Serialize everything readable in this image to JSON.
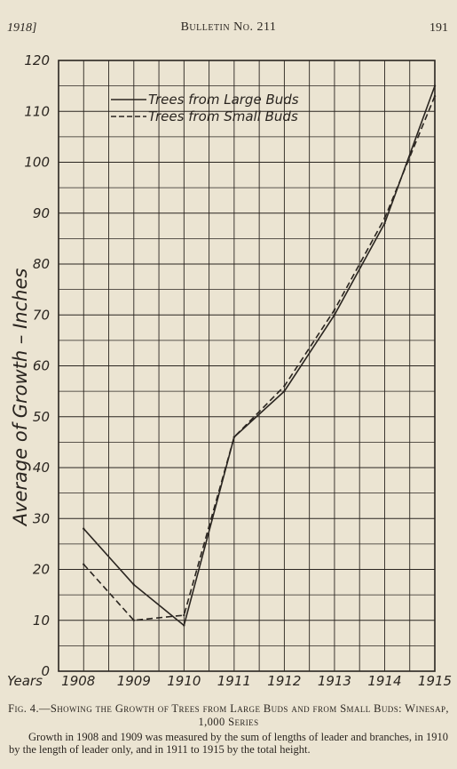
{
  "header": {
    "left": "1918]",
    "center": "Bulletin No. 211",
    "right": "191"
  },
  "chart_data": {
    "type": "line",
    "title": "",
    "ylabel": "Average of Growth – Inches",
    "xlabel": "Years",
    "x": [
      "1908",
      "1909",
      "1910",
      "1911",
      "1912",
      "1913",
      "1914",
      "1915"
    ],
    "ylim": [
      0,
      120
    ],
    "ytick_values": [
      0,
      10,
      20,
      30,
      40,
      50,
      60,
      70,
      80,
      90,
      100,
      110,
      120
    ],
    "yticks": [
      "0",
      "10",
      "20",
      "30",
      "40",
      "50",
      "60",
      "70",
      "80",
      "90",
      "100",
      "110",
      "120"
    ],
    "grid": true,
    "legend_position": "top-left",
    "series": [
      {
        "name": "Trees from Large Buds",
        "style": "solid",
        "values": [
          28,
          17,
          9,
          46,
          55,
          70,
          88,
          115
        ]
      },
      {
        "name": "Trees from Small Buds",
        "style": "dashed",
        "values": [
          21,
          10,
          11,
          46,
          56,
          71,
          89,
          113
        ]
      }
    ],
    "colors": {
      "ink": "#2a2520",
      "paper": "#ebe4d2"
    }
  },
  "caption": {
    "title": "Fig. 4.—Showing the Growth of Trees from Large Buds and from Small Buds: Winesap, 1,000 Series",
    "note": "Growth in 1908 and 1909 was measured by the sum of lengths of leader and branches, in 1910 by the length of leader only, and in 1911 to 1915 by the total height."
  }
}
